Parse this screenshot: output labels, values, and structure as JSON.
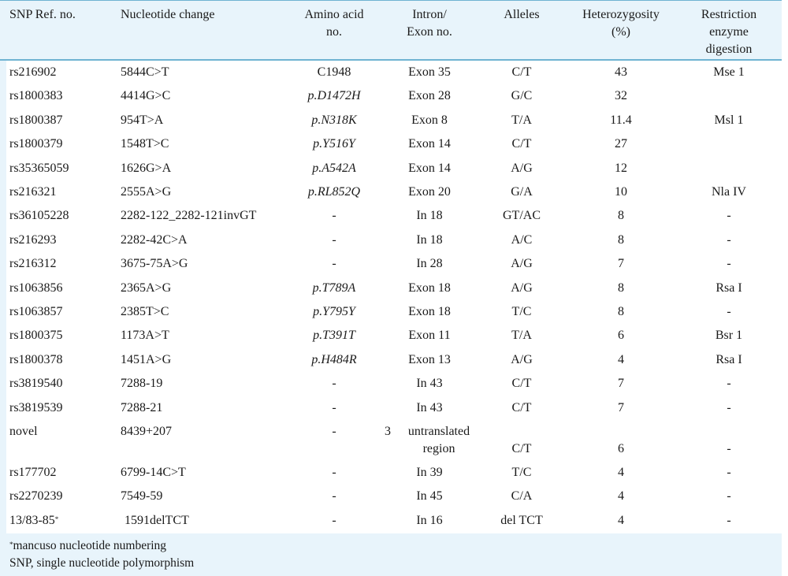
{
  "table": {
    "headers": {
      "snp": "SNP Ref. no.",
      "nucleotide": "Nucleotide change",
      "amino": [
        "Amino acid",
        "no."
      ],
      "intron": [
        "Intron/",
        "Exon no."
      ],
      "alleles": "Alleles",
      "het": [
        "Heterozygosity",
        "(%)"
      ],
      "restr": [
        "Restriction",
        "enzyme",
        "digestion"
      ]
    },
    "rows": [
      {
        "snp": "rs216902",
        "nuc": "5844C>T",
        "aa": "C1948",
        "aa_italic": false,
        "ie": "Exon 35",
        "al": "C/T",
        "het": "43",
        "re": "Mse 1"
      },
      {
        "snp": "rs1800383",
        "nuc": "4414G>C",
        "aa": "p.D1472H",
        "aa_italic": true,
        "ie": "Exon 28",
        "al": "G/C",
        "het": "32",
        "re": ""
      },
      {
        "snp": "rs1800387",
        "nuc": "954T>A",
        "aa": "p.N318K",
        "aa_italic": true,
        "ie": "Exon 8",
        "al": "T/A",
        "het": "11.4",
        "re": "Msl 1"
      },
      {
        "snp": "rs1800379",
        "nuc": "1548T>C",
        "aa": "p.Y516Y",
        "aa_italic": true,
        "ie": "Exon 14",
        "al": "C/T",
        "het": "27",
        "re": ""
      },
      {
        "snp": "rs35365059",
        "nuc": "1626G>A",
        "aa": "p.A542A",
        "aa_italic": true,
        "ie": "Exon 14",
        "al": "A/G",
        "het": "12",
        "re": ""
      },
      {
        "snp": "rs216321",
        "nuc": "2555A>G",
        "aa": "p.RL852Q",
        "aa_italic": true,
        "ie": "Exon 20",
        "al": "G/A",
        "het": "10",
        "re": "Nla IV"
      },
      {
        "snp": "rs36105228",
        "nuc": "2282-122_2282-121invGT",
        "aa": "-",
        "aa_italic": false,
        "ie": "In 18",
        "al": "GT/AC",
        "het": "8",
        "re": "-"
      },
      {
        "snp": "rs216293",
        "nuc": "2282-42C>A",
        "aa": "-",
        "aa_italic": false,
        "ie": "In 18",
        "al": "A/C",
        "het": "8",
        "re": "-"
      },
      {
        "snp": "rs216312",
        "nuc": "3675-75A>G",
        "aa": "-",
        "aa_italic": false,
        "ie": "In 28",
        "al": "A/G",
        "het": "7",
        "re": "-"
      },
      {
        "snp": "rs1063856",
        "nuc": "2365A>G",
        "aa": "p.T789A",
        "aa_italic": true,
        "ie": "Exon 18",
        "al": "A/G",
        "het": "8",
        "re": "Rsa I"
      },
      {
        "snp": "rs1063857",
        "nuc": "2385T>C",
        "aa": "p.Y795Y",
        "aa_italic": true,
        "ie": "Exon 18",
        "al": "T/C",
        "het": "8",
        "re": "-"
      },
      {
        "snp": "rs1800375",
        "nuc": "1173A>T",
        "aa": "p.T391T",
        "aa_italic": true,
        "ie": "Exon 11",
        "al": "T/A",
        "het": "6",
        "re": "Bsr 1"
      },
      {
        "snp": "rs1800378",
        "nuc": "1451A>G",
        "aa": "p.H484R",
        "aa_italic": true,
        "ie": "Exon 13",
        "al": "A/G",
        "het": "4",
        "re": "Rsa I"
      },
      {
        "snp": "rs3819540",
        "nuc": "7288-19",
        "aa": "-",
        "aa_italic": false,
        "ie": "In 43",
        "al": "C/T",
        "het": "7",
        "re": "-"
      },
      {
        "snp": "rs3819539",
        "nuc": "7288-21",
        "aa": "-",
        "aa_italic": false,
        "ie": "In 43",
        "al": "C/T",
        "het": "7",
        "re": "-"
      }
    ],
    "novel_row": {
      "snp": "novel",
      "nuc": "8439+207",
      "aa": "-",
      "ie_num": "3",
      "ie_line1": "untranslated",
      "ie_line2": "region",
      "al": "C/T",
      "het": "6",
      "re": "-"
    },
    "rows_after": [
      {
        "snp": "rs177702",
        "nuc": "6799-14C>T",
        "aa": "-",
        "aa_italic": false,
        "ie": "In 39",
        "al": "T/C",
        "het": "4",
        "re": "-"
      },
      {
        "snp": "rs2270239",
        "nuc": "7549-59",
        "aa": "-",
        "aa_italic": false,
        "ie": "In 45",
        "al": "C/A",
        "het": "4",
        "re": "-"
      },
      {
        "snp": "13/83-85",
        "snp_sup": "*",
        "nuc": "1591delTCT",
        "aa": "-",
        "aa_italic": false,
        "ie": "In 16",
        "al": "del TCT",
        "het": "4",
        "re": "-"
      }
    ]
  },
  "footnotes": {
    "star_mark": "*",
    "star_text": "mancuso nucleotide numbering",
    "abbrev": "SNP, single nucleotide polymorphism"
  }
}
